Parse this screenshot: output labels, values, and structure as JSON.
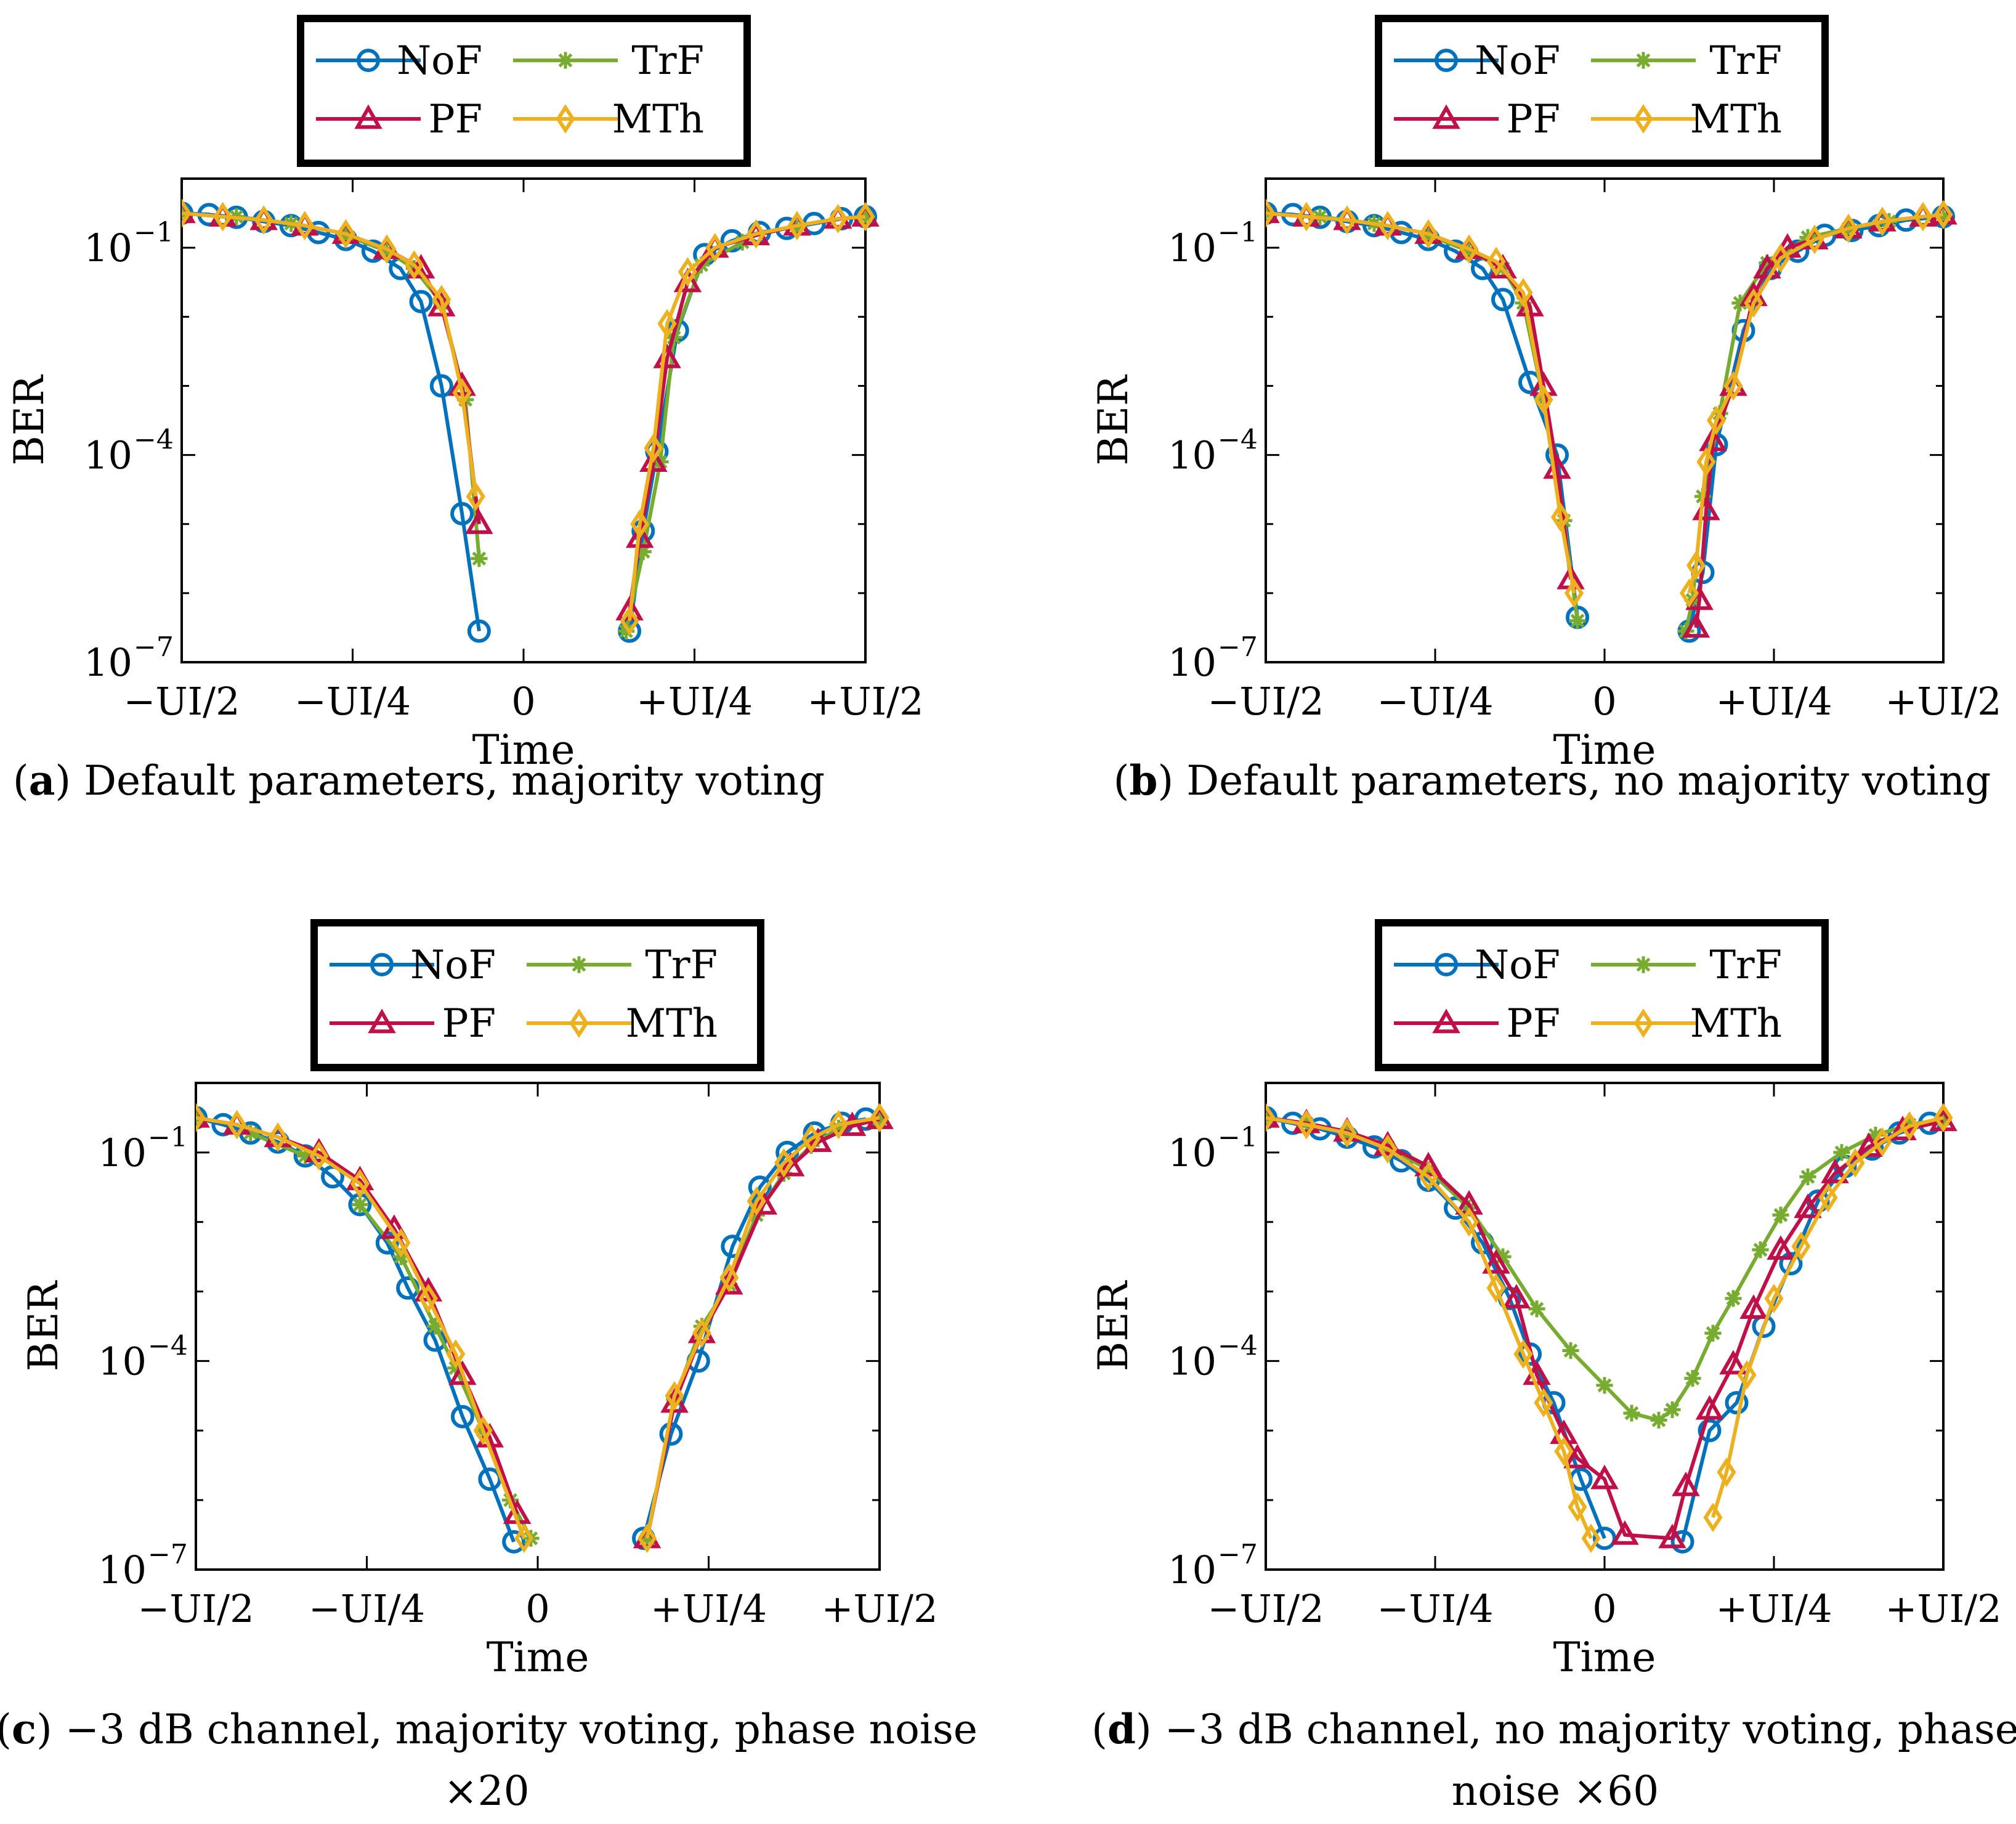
{
  "series_styles": [
    {
      "name": "NoF",
      "color": "#0072BD",
      "marker": "circle"
    },
    {
      "name": "TrF",
      "color": "#77AC30",
      "marker": "star"
    },
    {
      "name": "PF",
      "color": "#C0104A",
      "marker": "triangle"
    },
    {
      "name": "MTh",
      "color": "#EDB120",
      "marker": "diamond"
    }
  ],
  "chart_data": [
    {
      "type": "line",
      "label": "a",
      "caption": "Default parameters, majority voting",
      "caption_cont": "",
      "xlabel": "Time",
      "ylabel": "BER",
      "xlim": [
        -0.5,
        0.5
      ],
      "ylim_log10": [
        -7,
        0
      ],
      "xticks": [
        -0.5,
        -0.25,
        0,
        0.25,
        0.5
      ],
      "xtick_labels": [
        "−UI/2",
        "−UI/4",
        "0",
        "+UI/4",
        "+UI/2"
      ],
      "yticks_log10": [
        -1,
        -4,
        -7
      ],
      "ytick_labels": [
        "10",
        "10",
        "10"
      ],
      "ytick_exponents": [
        "−1",
        "−4",
        "−7"
      ],
      "legend": [
        "NoF",
        "TrF",
        "PF",
        "MTh"
      ],
      "series": [
        {
          "name": "NoF",
          "x": [
            -0.5,
            -0.46,
            -0.42,
            -0.38,
            -0.34,
            -0.3,
            -0.26,
            -0.22,
            -0.18,
            -0.15,
            -0.12,
            -0.09,
            -0.065,
            0.155,
            0.175,
            0.195,
            0.225,
            0.265,
            0.305,
            0.345,
            0.385,
            0.425,
            0.465,
            0.5
          ],
          "y": [
            -0.5,
            -0.52,
            -0.56,
            -0.62,
            -0.68,
            -0.78,
            -0.88,
            -1.05,
            -1.3,
            -1.78,
            -3.0,
            -4.85,
            -6.55,
            -6.55,
            -5.1,
            -3.95,
            -2.2,
            -1.1,
            -0.9,
            -0.78,
            -0.72,
            -0.65,
            -0.58,
            -0.55
          ]
        },
        {
          "name": "TrF",
          "x": [
            -0.5,
            -0.42,
            -0.34,
            -0.26,
            -0.2,
            -0.16,
            -0.12,
            -0.085,
            -0.065,
            0.15,
            0.175,
            0.2,
            0.22,
            0.26,
            0.32,
            0.4,
            0.5
          ],
          "y": [
            -0.5,
            -0.55,
            -0.65,
            -0.82,
            -1.05,
            -1.3,
            -1.8,
            -3.2,
            -5.5,
            -6.55,
            -5.4,
            -4.1,
            -2.3,
            -1.25,
            -0.92,
            -0.72,
            -0.55
          ]
        },
        {
          "name": "PF",
          "x": [
            -0.5,
            -0.44,
            -0.38,
            -0.32,
            -0.26,
            -0.2,
            -0.15,
            -0.12,
            -0.09,
            -0.065,
            0.155,
            0.17,
            0.19,
            0.21,
            0.24,
            0.28,
            0.34,
            0.4,
            0.46,
            0.5
          ],
          "y": [
            -0.5,
            -0.55,
            -0.6,
            -0.68,
            -0.8,
            -1.02,
            -1.3,
            -1.85,
            -3.0,
            -5.0,
            -6.25,
            -5.2,
            -4.1,
            -2.6,
            -1.5,
            -1.0,
            -0.82,
            -0.68,
            -0.58,
            -0.55
          ]
        },
        {
          "name": "MTh",
          "x": [
            -0.5,
            -0.44,
            -0.38,
            -0.32,
            -0.26,
            -0.2,
            -0.16,
            -0.12,
            -0.09,
            -0.07,
            0.155,
            0.17,
            0.19,
            0.21,
            0.24,
            0.28,
            0.34,
            0.4,
            0.46,
            0.5
          ],
          "y": [
            -0.5,
            -0.55,
            -0.6,
            -0.68,
            -0.8,
            -1.02,
            -1.25,
            -1.75,
            -3.1,
            -4.6,
            -6.4,
            -5.0,
            -3.9,
            -2.1,
            -1.35,
            -1.0,
            -0.8,
            -0.68,
            -0.58,
            -0.55
          ]
        }
      ]
    },
    {
      "type": "line",
      "label": "b",
      "caption": "Default parameters, no majority voting",
      "caption_cont": "",
      "xlabel": "Time",
      "ylabel": "BER",
      "xlim": [
        -0.5,
        0.5
      ],
      "ylim_log10": [
        -7,
        0
      ],
      "xticks": [
        -0.5,
        -0.25,
        0,
        0.25,
        0.5
      ],
      "xtick_labels": [
        "−UI/2",
        "−UI/4",
        "0",
        "+UI/4",
        "+UI/2"
      ],
      "yticks_log10": [
        -1,
        -4,
        -7
      ],
      "ytick_labels": [
        "10",
        "10",
        "10"
      ],
      "ytick_exponents": [
        "−1",
        "−4",
        "−7"
      ],
      "legend": [
        "NoF",
        "TrF",
        "PF",
        "MTh"
      ],
      "series": [
        {
          "name": "NoF",
          "x": [
            -0.5,
            -0.46,
            -0.42,
            -0.38,
            -0.34,
            -0.3,
            -0.26,
            -0.22,
            -0.18,
            -0.15,
            -0.11,
            -0.07,
            -0.04,
            0.125,
            0.145,
            0.165,
            0.205,
            0.245,
            0.285,
            0.325,
            0.365,
            0.405,
            0.445,
            0.5
          ],
          "y": [
            -0.5,
            -0.52,
            -0.56,
            -0.62,
            -0.68,
            -0.78,
            -0.88,
            -1.05,
            -1.3,
            -1.75,
            -2.95,
            -4.0,
            -6.35,
            -6.55,
            -5.7,
            -3.85,
            -2.2,
            -1.3,
            -1.05,
            -0.82,
            -0.75,
            -0.68,
            -0.6,
            -0.55
          ]
        },
        {
          "name": "TrF",
          "x": [
            -0.5,
            -0.42,
            -0.34,
            -0.26,
            -0.2,
            -0.15,
            -0.12,
            -0.09,
            -0.06,
            -0.04,
            0.12,
            0.13,
            0.145,
            0.17,
            0.2,
            0.24,
            0.3,
            0.36,
            0.42,
            0.5
          ],
          "y": [
            -0.5,
            -0.55,
            -0.65,
            -0.82,
            -1.05,
            -1.3,
            -1.8,
            -3.2,
            -4.95,
            -6.4,
            -6.55,
            -6.1,
            -4.6,
            -3.4,
            -1.8,
            -1.22,
            -0.85,
            -0.72,
            -0.62,
            -0.55
          ]
        },
        {
          "name": "PF",
          "x": [
            -0.5,
            -0.44,
            -0.38,
            -0.32,
            -0.26,
            -0.2,
            -0.15,
            -0.11,
            -0.09,
            -0.07,
            -0.05,
            0.135,
            0.14,
            0.15,
            0.16,
            0.19,
            0.22,
            0.24,
            0.27,
            0.31,
            0.36,
            0.41,
            0.47,
            0.5
          ],
          "y": [
            -0.5,
            -0.55,
            -0.6,
            -0.68,
            -0.8,
            -1.02,
            -1.3,
            -1.85,
            -3.0,
            -4.2,
            -5.8,
            -6.5,
            -6.1,
            -4.8,
            -3.8,
            -3.0,
            -1.7,
            -1.3,
            -1.0,
            -0.88,
            -0.72,
            -0.62,
            -0.55,
            -0.52
          ]
        },
        {
          "name": "MTh",
          "x": [
            -0.5,
            -0.44,
            -0.38,
            -0.32,
            -0.26,
            -0.2,
            -0.16,
            -0.12,
            -0.09,
            -0.065,
            -0.045,
            0.125,
            0.135,
            0.15,
            0.165,
            0.19,
            0.22,
            0.26,
            0.31,
            0.36,
            0.41,
            0.47,
            0.5
          ],
          "y": [
            -0.5,
            -0.55,
            -0.6,
            -0.68,
            -0.8,
            -1.02,
            -1.2,
            -1.65,
            -3.2,
            -4.9,
            -6.0,
            -6.0,
            -5.6,
            -4.1,
            -3.5,
            -3.0,
            -1.8,
            -1.15,
            -0.88,
            -0.72,
            -0.62,
            -0.55,
            -0.52
          ]
        }
      ]
    },
    {
      "type": "line",
      "label": "c",
      "caption": "−3 dB channel, majority voting, phase noise",
      "caption_cont": "×20",
      "xlabel": "Time",
      "ylabel": "BER",
      "xlim": [
        -0.5,
        0.5
      ],
      "ylim_log10": [
        -7,
        0
      ],
      "xticks": [
        -0.5,
        -0.25,
        0,
        0.25,
        0.5
      ],
      "xtick_labels": [
        "−UI/2",
        "−UI/4",
        "0",
        "+UI/4",
        "+UI/2"
      ],
      "yticks_log10": [
        -1,
        -4,
        -7
      ],
      "ytick_labels": [
        "10",
        "10",
        "10"
      ],
      "ytick_exponents": [
        "−1",
        "−4",
        "−7"
      ],
      "legend": [
        "NoF",
        "TrF",
        "PF",
        "MTh"
      ],
      "series": [
        {
          "name": "NoF",
          "x": [
            -0.5,
            -0.46,
            -0.42,
            -0.38,
            -0.34,
            -0.3,
            -0.26,
            -0.22,
            -0.19,
            -0.15,
            -0.11,
            -0.07,
            -0.035,
            0.155,
            0.195,
            0.235,
            0.285,
            0.325,
            0.365,
            0.405,
            0.445,
            0.48
          ],
          "y": [
            -0.5,
            -0.6,
            -0.72,
            -0.85,
            -1.05,
            -1.35,
            -1.75,
            -2.3,
            -2.95,
            -3.7,
            -4.8,
            -5.7,
            -6.6,
            -6.55,
            -5.05,
            -4.0,
            -2.35,
            -1.5,
            -1.0,
            -0.72,
            -0.58,
            -0.52
          ]
        },
        {
          "name": "TrF",
          "x": [
            -0.5,
            -0.42,
            -0.34,
            -0.26,
            -0.2,
            -0.15,
            -0.12,
            -0.08,
            -0.04,
            -0.01,
            0.16,
            0.2,
            0.24,
            0.28,
            0.32,
            0.36,
            0.4,
            0.44,
            0.5
          ],
          "y": [
            -0.5,
            -0.72,
            -1.05,
            -1.75,
            -2.5,
            -3.5,
            -4.1,
            -5.0,
            -6.0,
            -6.55,
            -6.55,
            -4.55,
            -3.5,
            -2.9,
            -1.9,
            -1.3,
            -0.9,
            -0.65,
            -0.52
          ]
        },
        {
          "name": "PF",
          "x": [
            -0.5,
            -0.44,
            -0.38,
            -0.32,
            -0.26,
            -0.21,
            -0.16,
            -0.11,
            -0.07,
            -0.03,
            0.16,
            0.2,
            0.24,
            0.28,
            0.33,
            0.37,
            0.41,
            0.46,
            0.5
          ],
          "y": [
            -0.5,
            -0.6,
            -0.78,
            -1.0,
            -1.4,
            -2.1,
            -3.0,
            -4.2,
            -5.1,
            -6.2,
            -6.55,
            -4.6,
            -3.6,
            -2.9,
            -1.75,
            -1.2,
            -0.85,
            -0.62,
            -0.52
          ]
        },
        {
          "name": "MTh",
          "x": [
            -0.5,
            -0.44,
            -0.38,
            -0.32,
            -0.26,
            -0.2,
            -0.16,
            -0.12,
            -0.08,
            -0.02,
            0.16,
            0.2,
            0.24,
            0.28,
            0.32,
            0.36,
            0.4,
            0.44,
            0.5
          ],
          "y": [
            -0.5,
            -0.6,
            -0.78,
            -1.05,
            -1.45,
            -2.3,
            -3.1,
            -3.9,
            -5.0,
            -6.55,
            -6.55,
            -4.5,
            -3.6,
            -2.8,
            -1.7,
            -1.15,
            -0.8,
            -0.6,
            -0.5
          ]
        }
      ]
    },
    {
      "type": "line",
      "label": "d",
      "caption": "−3 dB channel, no majority voting, phase",
      "caption_cont": "noise ×60",
      "xlabel": "Time",
      "ylabel": "BER",
      "xlim": [
        -0.5,
        0.5
      ],
      "ylim_log10": [
        -7,
        0
      ],
      "xticks": [
        -0.5,
        -0.25,
        0,
        0.25,
        0.5
      ],
      "xtick_labels": [
        "−UI/2",
        "−UI/4",
        "0",
        "+UI/4",
        "+UI/2"
      ],
      "yticks_log10": [
        -1,
        -4,
        -7
      ],
      "ytick_labels": [
        "10",
        "10",
        "10"
      ],
      "ytick_exponents": [
        "−1",
        "−4",
        "−7"
      ],
      "legend": [
        "NoF",
        "TrF",
        "PF",
        "MTh"
      ],
      "series": [
        {
          "name": "NoF",
          "x": [
            -0.5,
            -0.46,
            -0.42,
            -0.38,
            -0.34,
            -0.3,
            -0.26,
            -0.22,
            -0.18,
            -0.14,
            -0.11,
            -0.075,
            -0.035,
            0.0,
            0.115,
            0.155,
            0.195,
            0.235,
            0.275,
            0.315,
            0.355,
            0.395,
            0.435,
            0.48
          ],
          "y": [
            -0.5,
            -0.58,
            -0.66,
            -0.78,
            -0.92,
            -1.12,
            -1.4,
            -1.8,
            -2.3,
            -3.1,
            -3.9,
            -4.6,
            -5.7,
            -6.55,
            -6.6,
            -5.0,
            -4.6,
            -3.5,
            -2.6,
            -1.7,
            -1.2,
            -0.95,
            -0.72,
            -0.58
          ]
        },
        {
          "name": "TrF",
          "x": [
            -0.5,
            -0.44,
            -0.38,
            -0.32,
            -0.26,
            -0.2,
            -0.15,
            -0.1,
            -0.05,
            0.0,
            0.04,
            0.08,
            0.1,
            0.13,
            0.16,
            0.19,
            0.23,
            0.26,
            0.3,
            0.35,
            0.4,
            0.45,
            0.5
          ],
          "y": [
            -0.5,
            -0.58,
            -0.72,
            -0.92,
            -1.25,
            -1.8,
            -2.5,
            -3.25,
            -3.85,
            -4.35,
            -4.75,
            -4.85,
            -4.7,
            -4.25,
            -3.6,
            -3.1,
            -2.4,
            -1.9,
            -1.35,
            -1.0,
            -0.75,
            -0.6,
            -0.52
          ]
        },
        {
          "name": "PF",
          "x": [
            -0.5,
            -0.44,
            -0.38,
            -0.32,
            -0.26,
            -0.2,
            -0.16,
            -0.13,
            -0.1,
            -0.06,
            -0.04,
            0.0,
            0.03,
            0.1,
            0.12,
            0.155,
            0.19,
            0.22,
            0.26,
            0.3,
            0.34,
            0.39,
            0.44,
            0.5
          ],
          "y": [
            -0.5,
            -0.58,
            -0.7,
            -0.9,
            -1.2,
            -1.75,
            -2.6,
            -3.1,
            -4.2,
            -5.05,
            -5.4,
            -5.7,
            -6.5,
            -6.55,
            -5.8,
            -4.7,
            -4.05,
            -3.25,
            -2.4,
            -1.8,
            -1.3,
            -0.92,
            -0.68,
            -0.55
          ]
        },
        {
          "name": "MTh",
          "x": [
            -0.5,
            -0.44,
            -0.38,
            -0.32,
            -0.26,
            -0.2,
            -0.16,
            -0.12,
            -0.09,
            -0.06,
            -0.04,
            -0.02,
            0.16,
            0.18,
            0.21,
            0.25,
            0.29,
            0.33,
            0.37,
            0.41,
            0.45,
            0.5
          ],
          "y": [
            -0.5,
            -0.6,
            -0.72,
            -0.95,
            -1.35,
            -2.0,
            -2.95,
            -3.9,
            -4.6,
            -5.3,
            -6.1,
            -6.55,
            -6.25,
            -5.6,
            -4.2,
            -3.1,
            -2.35,
            -1.65,
            -1.15,
            -0.85,
            -0.62,
            -0.5
          ]
        }
      ]
    }
  ]
}
